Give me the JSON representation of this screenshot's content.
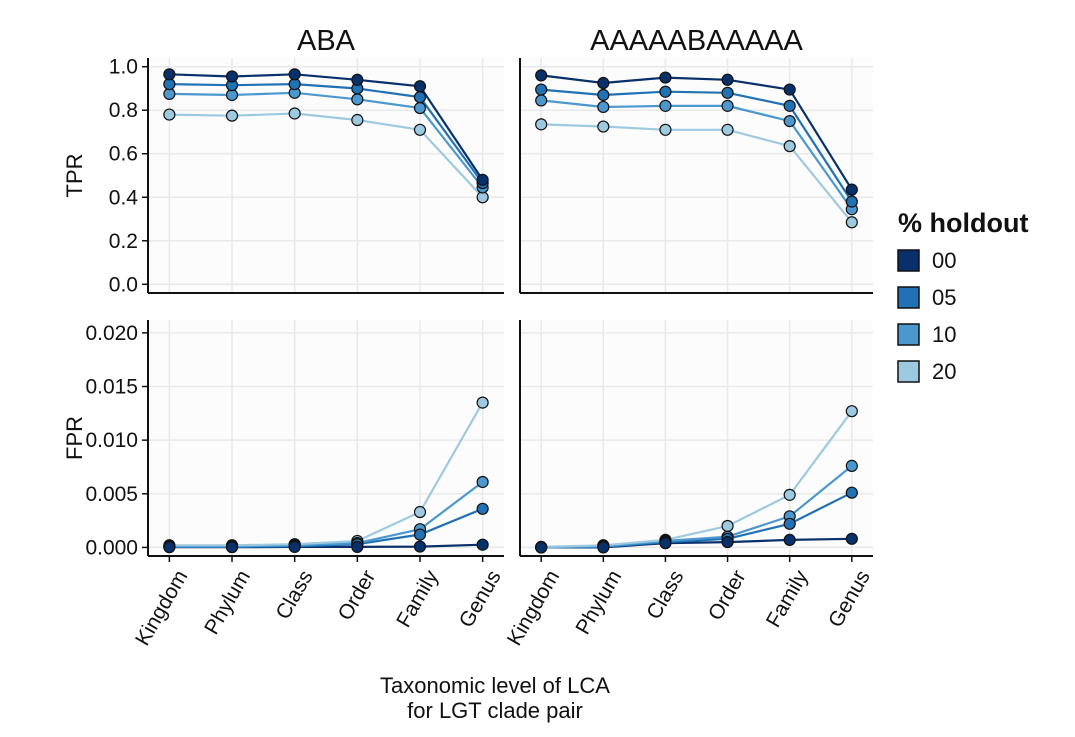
{
  "chart_data": {
    "type": "line",
    "x_label_lines": [
      "Taxonomic level of LCA",
      "for LGT clade pair"
    ],
    "categories": [
      "Kingdom",
      "Phylum",
      "Class",
      "Order",
      "Family",
      "Genus"
    ],
    "facet_columns": [
      "ABA",
      "AAAAABAAAAA"
    ],
    "rows": [
      {
        "ylabel": "TPR",
        "ylim": [
          -0.04,
          1.04
        ],
        "ticks": [
          "0.0",
          "0.2",
          "0.4",
          "0.6",
          "0.8",
          "1.0"
        ],
        "tick_values": [
          0,
          0.2,
          0.4,
          0.6,
          0.8,
          1.0
        ]
      },
      {
        "ylabel": "FPR",
        "ylim": [
          -0.0008,
          0.0212
        ],
        "ticks": [
          "0.000",
          "0.005",
          "0.010",
          "0.015",
          "0.020"
        ],
        "tick_values": [
          0,
          0.005,
          0.01,
          0.015,
          0.02
        ]
      }
    ],
    "legend": {
      "title": "% holdout",
      "position": "right"
    },
    "series": [
      {
        "name": "00",
        "color": "#08306b",
        "values": {
          "ABA": {
            "TPR": [
              0.965,
              0.955,
              0.965,
              0.94,
              0.91,
              0.48
            ],
            "FPR": [
              2e-05,
              2e-05,
              5e-05,
              5e-05,
              8e-05,
              0.00025
            ]
          },
          "AAAAABAAAAA": {
            "TPR": [
              0.96,
              0.925,
              0.95,
              0.94,
              0.895,
              0.435
            ],
            "FPR": [
              0.0,
              0.0,
              0.0004,
              0.0005,
              0.0007,
              0.0008
            ]
          }
        }
      },
      {
        "name": "05",
        "color": "#2171b5",
        "values": {
          "ABA": {
            "TPR": [
              0.92,
              0.915,
              0.92,
              0.9,
              0.86,
              0.465
            ],
            "FPR": [
              5e-05,
              5e-05,
              0.0001,
              0.0003,
              0.0012,
              0.0036
            ]
          },
          "AAAAABAAAAA": {
            "TPR": [
              0.895,
              0.87,
              0.885,
              0.88,
              0.82,
              0.38
            ],
            "FPR": [
              0.0,
              5e-05,
              0.0005,
              0.0008,
              0.0022,
              0.0051
            ]
          }
        }
      },
      {
        "name": "10",
        "color": "#4b98cf",
        "values": {
          "ABA": {
            "TPR": [
              0.875,
              0.87,
              0.88,
              0.85,
              0.81,
              0.445
            ],
            "FPR": [
              0.0001,
              0.0001,
              0.0002,
              0.0004,
              0.0017,
              0.0061
            ]
          },
          "AAAAABAAAAA": {
            "TPR": [
              0.845,
              0.815,
              0.82,
              0.82,
              0.75,
              0.345
            ],
            "FPR": [
              0.0,
              0.0001,
              0.0006,
              0.001,
              0.0029,
              0.0076
            ]
          }
        }
      },
      {
        "name": "20",
        "color": "#9ecae1",
        "values": {
          "ABA": {
            "TPR": [
              0.78,
              0.775,
              0.785,
              0.755,
              0.71,
              0.4
            ],
            "FPR": [
              0.0002,
              0.0002,
              0.0003,
              0.0006,
              0.0033,
              0.0135
            ]
          },
          "AAAAABAAAAA": {
            "TPR": [
              0.735,
              0.725,
              0.71,
              0.71,
              0.635,
              0.285
            ],
            "FPR": [
              5e-05,
              0.0002,
              0.0007,
              0.002,
              0.0049,
              0.0127
            ]
          }
        }
      }
    ]
  }
}
